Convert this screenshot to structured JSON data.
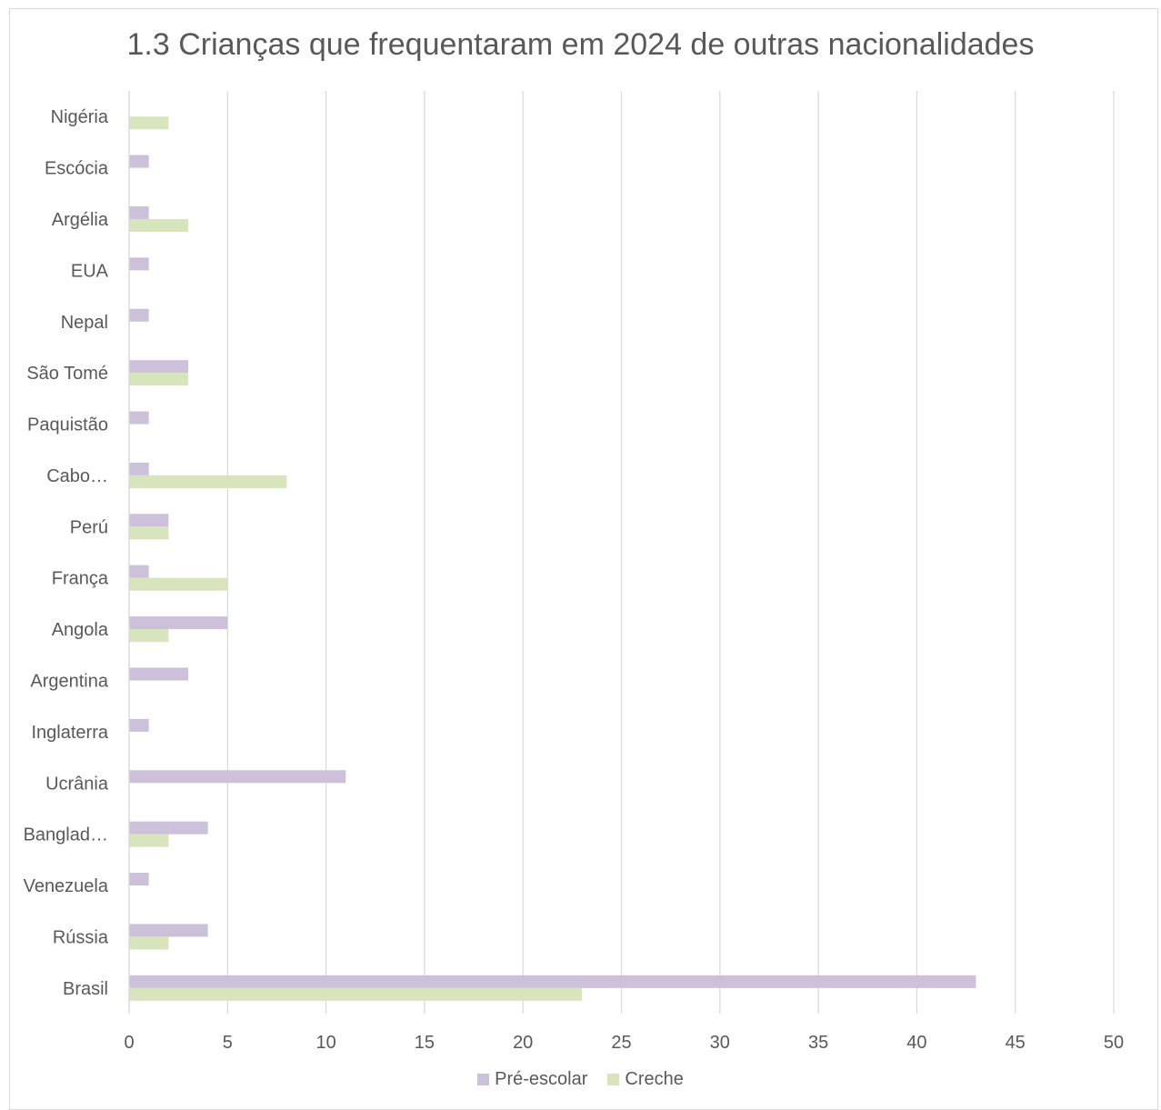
{
  "chart_data": {
    "type": "bar",
    "orientation": "horizontal",
    "title": "1.3 Crianças que frequentaram em 2024 de outras nacionalidades",
    "xlabel": "",
    "ylabel": "",
    "xlim": [
      0,
      50
    ],
    "xticks": [
      "0",
      "5",
      "10",
      "15",
      "20",
      "25",
      "30",
      "35",
      "40",
      "45",
      "50"
    ],
    "grid": true,
    "legend_position": "bottom",
    "categories": [
      "Nigéria",
      "Escócia",
      "Argélia",
      "EUA",
      "Nepal",
      "São Tomé",
      "Paquistão",
      "Cabo…",
      "Perú",
      "França",
      "Angola",
      "Argentina",
      "Inglaterra",
      "Ucrânia",
      "Banglad…",
      "Venezuela",
      "Rússia",
      "Brasil"
    ],
    "series": [
      {
        "name": "Pré-escolar",
        "color": "#ccc0da",
        "values": [
          0,
          1,
          1,
          1,
          1,
          3,
          1,
          1,
          2,
          1,
          5,
          3,
          1,
          11,
          4,
          1,
          4,
          43
        ]
      },
      {
        "name": "Creche",
        "color": "#d8e4bc",
        "values": [
          2,
          0,
          3,
          0,
          0,
          3,
          0,
          8,
          2,
          5,
          2,
          0,
          0,
          0,
          2,
          0,
          2,
          23
        ]
      }
    ]
  }
}
